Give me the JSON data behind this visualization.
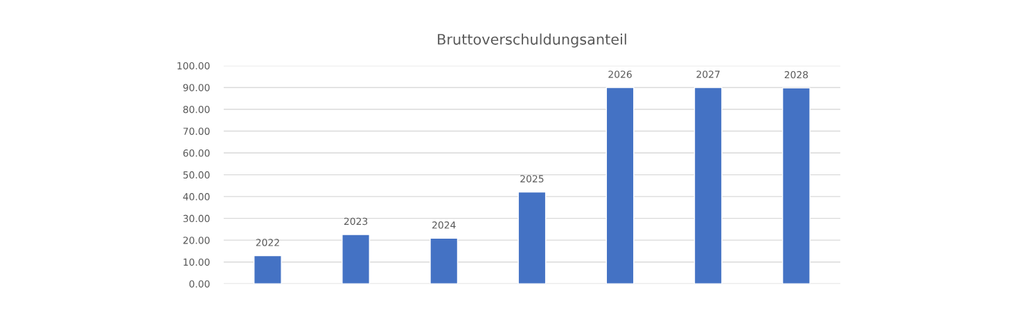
{
  "chart_data": {
    "type": "bar",
    "title": "Bruttoverschuldungsanteil",
    "categories": [
      "2022",
      "2023",
      "2024",
      "2025",
      "2026",
      "2027",
      "2028"
    ],
    "values": [
      12.9,
      22.6,
      20.9,
      42.1,
      90.0,
      90.0,
      89.8
    ],
    "color": "#4472c4",
    "ylim": [
      0,
      100
    ],
    "yticks": [
      {
        "value": 0,
        "label": "0.00"
      },
      {
        "value": 10,
        "label": "10.00"
      },
      {
        "value": 20,
        "label": "20.00"
      },
      {
        "value": 30,
        "label": "30.00"
      },
      {
        "value": 40,
        "label": "40.00"
      },
      {
        "value": 50,
        "label": "50.00"
      },
      {
        "value": 60,
        "label": "60.00"
      },
      {
        "value": 70,
        "label": "70.00"
      },
      {
        "value": 80,
        "label": "80.00"
      },
      {
        "value": 90,
        "label": "90.00"
      },
      {
        "value": 100,
        "label": "100.00"
      }
    ],
    "grid": "y"
  }
}
